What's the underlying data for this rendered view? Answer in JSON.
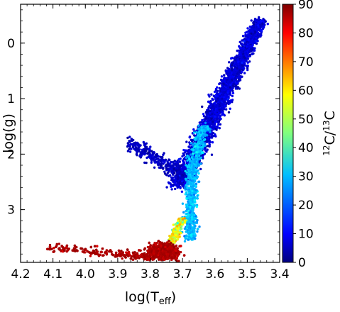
{
  "chart_data": {
    "type": "scatter",
    "title": "",
    "xlabel": {
      "base": "log(T",
      "sub": "eff",
      "end": ")"
    },
    "ylabel": "log(g)",
    "xlim": [
      4.2,
      3.4
    ],
    "ylim": [
      -0.7,
      3.95
    ],
    "x_inverted": true,
    "y_inverted": true,
    "xticks": [
      4.2,
      4.1,
      4.0,
      3.9,
      3.8,
      3.7,
      3.6,
      3.5,
      3.4
    ],
    "xtick_labels": [
      "4.2",
      "4.1",
      "4.0",
      "3.9",
      "3.8",
      "3.7",
      "3.6",
      "3.5",
      "3.4"
    ],
    "yticks": [
      0,
      1,
      2,
      3
    ],
    "ytick_labels": [
      "0",
      "1",
      "2",
      "3"
    ],
    "colorbar": {
      "label": {
        "pre1": "12",
        "mid1": "C/",
        "pre2": "13",
        "mid2": "C"
      },
      "range": [
        0,
        90
      ],
      "ticks": [
        0,
        10,
        20,
        30,
        40,
        50,
        60,
        70,
        80,
        90
      ],
      "tick_labels": [
        "0",
        "10",
        "20",
        "30",
        "40",
        "50",
        "60",
        "70",
        "80",
        "90"
      ],
      "colormap": "jet"
    },
    "series": [
      {
        "color_value": 8,
        "n": 2600,
        "teff_range": [
          3.78,
          3.4
        ],
        "logg_range": [
          -0.4,
          2.6
        ]
      },
      {
        "color_value": 6,
        "n": 350,
        "teff_range": [
          3.87,
          3.69
        ],
        "logg_range": [
          1.7,
          3.1
        ]
      },
      {
        "color_value": 28,
        "n": 900,
        "teff_range": [
          3.73,
          3.62
        ],
        "logg_range": [
          1.4,
          3.6
        ]
      },
      {
        "color_value": 55,
        "n": 200,
        "teff_range": [
          3.71,
          3.66
        ],
        "logg_range": [
          3.1,
          3.7
        ]
      },
      {
        "color_value": 88,
        "n": 2200,
        "teff_range": [
          4.12,
          3.68
        ],
        "logg_range": [
          3.2,
          3.95
        ]
      }
    ],
    "grid": false,
    "legend": "none"
  }
}
